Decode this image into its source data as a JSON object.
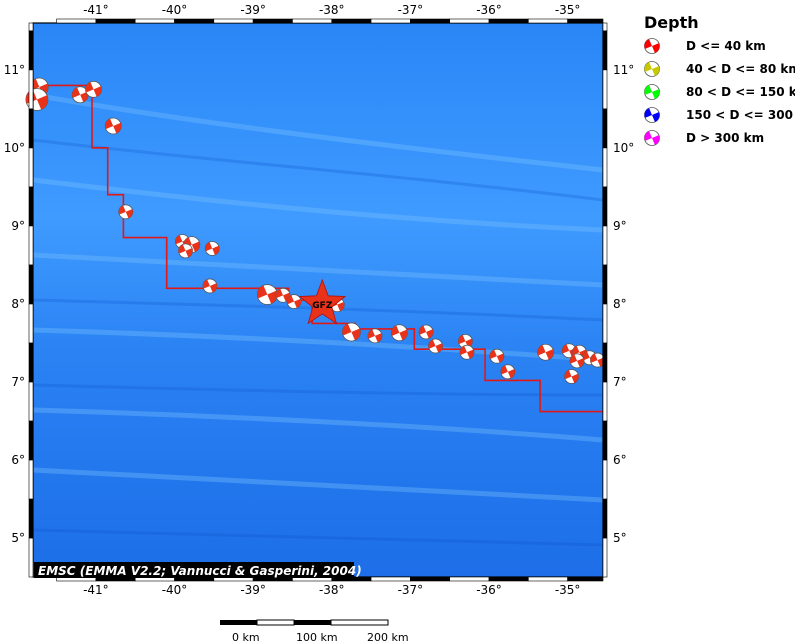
{
  "map": {
    "lon_range": [
      -41.8,
      -34.55
    ],
    "lat_range": [
      4.5,
      11.6
    ],
    "x_ticks": [
      {
        "value": -41,
        "label": "-41°"
      },
      {
        "value": -40,
        "label": "-40°"
      },
      {
        "value": -39,
        "label": "-39°"
      },
      {
        "value": -38,
        "label": "-38°"
      },
      {
        "value": -37,
        "label": "-37°"
      },
      {
        "value": -36,
        "label": "-36°"
      },
      {
        "value": -35,
        "label": "-35°"
      }
    ],
    "y_ticks": [
      {
        "value": 11,
        "label": "11°"
      },
      {
        "value": 10,
        "label": "10°"
      },
      {
        "value": 9,
        "label": "9°"
      },
      {
        "value": 8,
        "label": "8°"
      },
      {
        "value": 7,
        "label": "7°"
      },
      {
        "value": 6,
        "label": "6°"
      },
      {
        "value": 5,
        "label": "5°"
      }
    ],
    "plate_boundary": [
      [
        -41.8,
        10.8
      ],
      [
        -41.05,
        10.8
      ],
      [
        -41.05,
        10.0
      ],
      [
        -40.85,
        10.0
      ],
      [
        -40.85,
        9.4
      ],
      [
        -40.65,
        9.4
      ],
      [
        -40.65,
        8.85
      ],
      [
        -40.1,
        8.85
      ],
      [
        -40.1,
        8.2
      ],
      [
        -38.55,
        8.2
      ],
      [
        -38.55,
        8.05
      ],
      [
        -38.25,
        8.05
      ],
      [
        -38.25,
        7.75
      ],
      [
        -37.7,
        7.75
      ],
      [
        -37.7,
        7.68
      ],
      [
        -36.95,
        7.68
      ],
      [
        -36.95,
        7.42
      ],
      [
        -36.05,
        7.42
      ],
      [
        -36.05,
        7.02
      ],
      [
        -35.35,
        7.02
      ],
      [
        -35.35,
        6.62
      ],
      [
        -34.55,
        6.62
      ]
    ],
    "events": [
      {
        "lon": -41.72,
        "lat": 10.78,
        "size": 9
      },
      {
        "lon": -41.75,
        "lat": 10.62,
        "size": 11
      },
      {
        "lon": -41.2,
        "lat": 10.68,
        "size": 8
      },
      {
        "lon": -41.03,
        "lat": 10.75,
        "size": 8
      },
      {
        "lon": -40.78,
        "lat": 10.28,
        "size": 8
      },
      {
        "lon": -40.62,
        "lat": 9.18,
        "size": 7
      },
      {
        "lon": -39.9,
        "lat": 8.8,
        "size": 7
      },
      {
        "lon": -39.78,
        "lat": 8.76,
        "size": 8
      },
      {
        "lon": -39.86,
        "lat": 8.68,
        "size": 7
      },
      {
        "lon": -39.52,
        "lat": 8.71,
        "size": 7
      },
      {
        "lon": -39.55,
        "lat": 8.23,
        "size": 7
      },
      {
        "lon": -38.82,
        "lat": 8.12,
        "size": 10
      },
      {
        "lon": -38.62,
        "lat": 8.11,
        "size": 7
      },
      {
        "lon": -38.48,
        "lat": 8.03,
        "size": 7
      },
      {
        "lon": -37.93,
        "lat": 7.99,
        "size": 7
      },
      {
        "lon": -37.75,
        "lat": 7.64,
        "size": 9
      },
      {
        "lon": -37.45,
        "lat": 7.59,
        "size": 7
      },
      {
        "lon": -37.14,
        "lat": 7.63,
        "size": 8
      },
      {
        "lon": -36.8,
        "lat": 7.64,
        "size": 7
      },
      {
        "lon": -36.68,
        "lat": 7.46,
        "size": 7
      },
      {
        "lon": -36.3,
        "lat": 7.52,
        "size": 7
      },
      {
        "lon": -36.28,
        "lat": 7.38,
        "size": 7
      },
      {
        "lon": -35.9,
        "lat": 7.33,
        "size": 7
      },
      {
        "lon": -35.76,
        "lat": 7.13,
        "size": 7
      },
      {
        "lon": -35.28,
        "lat": 7.38,
        "size": 8
      },
      {
        "lon": -34.98,
        "lat": 7.4,
        "size": 7
      },
      {
        "lon": -34.85,
        "lat": 7.38,
        "size": 7
      },
      {
        "lon": -34.72,
        "lat": 7.31,
        "size": 7
      },
      {
        "lon": -34.62,
        "lat": 7.28,
        "size": 7
      },
      {
        "lon": -34.88,
        "lat": 7.27,
        "size": 7
      },
      {
        "lon": -34.95,
        "lat": 7.07,
        "size": 7
      }
    ],
    "main_event": {
      "lon": -38.12,
      "lat": 8.0,
      "label": "GFZ"
    }
  },
  "legend": {
    "title": "Depth",
    "items": [
      {
        "label": "D <= 40 km",
        "color": "#ff0000"
      },
      {
        "label": "40 < D <= 80 km",
        "color": "#c8c800"
      },
      {
        "label": "80 < D <= 150 km",
        "color": "#00ff00"
      },
      {
        "label": "150 < D <= 300 km",
        "color": "#0000ff"
      },
      {
        "label": "D > 300 km",
        "color": "#ff00ff"
      }
    ]
  },
  "credit": "EMSC (EMMA V2.2; Vannucci & Gasperini, 2004)",
  "scale_bar": {
    "labels": [
      "0 km",
      "100 km",
      "200 km"
    ]
  },
  "colors": {
    "ocean_deep": "#1f6ff0",
    "ocean_light": "#62b2ff",
    "boundary": "#e01818",
    "mechanism_fill": "#e8331a",
    "star": "#e8331a"
  }
}
